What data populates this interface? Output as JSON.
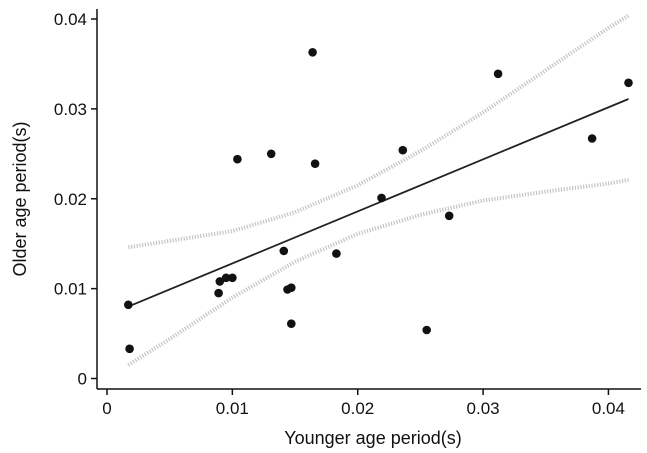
{
  "chart_data": {
    "type": "scatter",
    "xlabel": "Younger age period(s)",
    "ylabel": "Older age period(s)",
    "xlim": [
      0,
      0.042
    ],
    "ylim": [
      0,
      0.04
    ],
    "xticks": [
      0,
      0.01,
      0.02,
      0.03,
      0.04
    ],
    "xtick_labels": [
      "0",
      "0.01",
      "0.02",
      "0.03",
      "0.04"
    ],
    "yticks": [
      0,
      0.01,
      0.02,
      0.03,
      0.04
    ],
    "ytick_labels": [
      "0",
      "0.01",
      "0.02",
      "0.03",
      "0.04"
    ],
    "grid": false,
    "legend": "none",
    "colors": {
      "points": "#111111",
      "fit_line": "#222222",
      "confidence_band": "#c4c4c4",
      "axes": "#111111"
    },
    "points": [
      {
        "x": 0.0017,
        "y": 0.0082
      },
      {
        "x": 0.0018,
        "y": 0.0033
      },
      {
        "x": 0.0089,
        "y": 0.0095
      },
      {
        "x": 0.009,
        "y": 0.0108
      },
      {
        "x": 0.0095,
        "y": 0.0112
      },
      {
        "x": 0.01,
        "y": 0.0112
      },
      {
        "x": 0.0104,
        "y": 0.0244
      },
      {
        "x": 0.0131,
        "y": 0.025
      },
      {
        "x": 0.0141,
        "y": 0.0142
      },
      {
        "x": 0.0144,
        "y": 0.0099
      },
      {
        "x": 0.0147,
        "y": 0.0101
      },
      {
        "x": 0.0147,
        "y": 0.0061
      },
      {
        "x": 0.0164,
        "y": 0.0363
      },
      {
        "x": 0.0166,
        "y": 0.0239
      },
      {
        "x": 0.0183,
        "y": 0.0139
      },
      {
        "x": 0.0219,
        "y": 0.0201
      },
      {
        "x": 0.0236,
        "y": 0.0254
      },
      {
        "x": 0.0255,
        "y": 0.0054
      },
      {
        "x": 0.0273,
        "y": 0.0181
      },
      {
        "x": 0.0312,
        "y": 0.0339
      },
      {
        "x": 0.0387,
        "y": 0.0267
      },
      {
        "x": 0.0416,
        "y": 0.0329
      }
    ],
    "fit_line": [
      [
        0.0017,
        0.008
      ],
      [
        0.0416,
        0.0311
      ]
    ],
    "confidence_upper": [
      [
        0.0017,
        0.0146
      ],
      [
        0.01,
        0.0164
      ],
      [
        0.015,
        0.0185
      ],
      [
        0.02,
        0.0215
      ],
      [
        0.025,
        0.0253
      ],
      [
        0.03,
        0.0296
      ],
      [
        0.035,
        0.0343
      ],
      [
        0.04,
        0.039
      ],
      [
        0.0416,
        0.0404
      ]
    ],
    "confidence_lower": [
      [
        0.0017,
        0.0015
      ],
      [
        0.005,
        0.0044
      ],
      [
        0.01,
        0.009
      ],
      [
        0.015,
        0.013
      ],
      [
        0.02,
        0.0161
      ],
      [
        0.025,
        0.0182
      ],
      [
        0.03,
        0.0198
      ],
      [
        0.035,
        0.0208
      ],
      [
        0.04,
        0.0217
      ],
      [
        0.0416,
        0.0221
      ]
    ]
  }
}
